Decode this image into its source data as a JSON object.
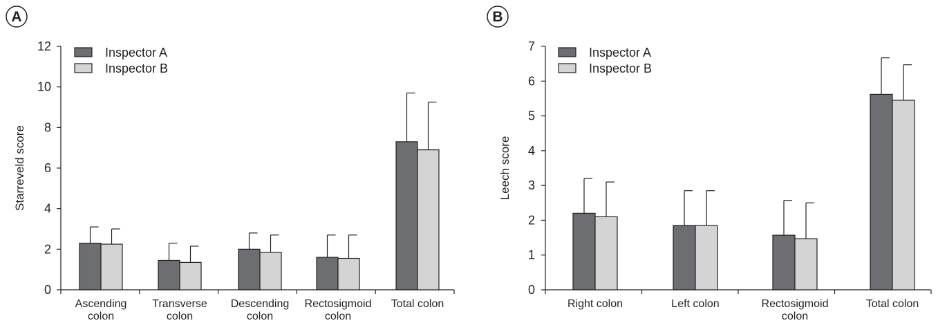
{
  "panels": [
    {
      "label": "A",
      "chart_data": {
        "type": "bar",
        "categories": [
          [
            "Ascending",
            "colon"
          ],
          [
            "Transverse",
            "colon"
          ],
          [
            "Descending",
            "colon"
          ],
          [
            "Rectosigmoid",
            "colon"
          ],
          [
            "Total colon"
          ]
        ],
        "series": [
          {
            "name": "Inspector A",
            "values": [
              2.3,
              1.45,
              2.0,
              1.6,
              7.3
            ],
            "errors": [
              0.8,
              0.85,
              0.8,
              1.1,
              2.4
            ]
          },
          {
            "name": "Inspector B",
            "values": [
              2.25,
              1.35,
              1.85,
              1.55,
              6.9
            ],
            "errors": [
              0.75,
              0.8,
              0.85,
              1.15,
              2.35
            ]
          }
        ],
        "ylabel": "Starreveld score",
        "xlabel": "",
        "ylim": [
          0,
          12
        ],
        "yticks": [
          0,
          2,
          4,
          6,
          8,
          10,
          12
        ],
        "legend": "top-left",
        "grid": false
      }
    },
    {
      "label": "B",
      "chart_data": {
        "type": "bar",
        "categories": [
          [
            "Right colon"
          ],
          [
            "Left colon"
          ],
          [
            "Rectosigmoid",
            "colon"
          ],
          [
            "Total colon"
          ]
        ],
        "series": [
          {
            "name": "Inspector A",
            "values": [
              2.2,
              1.85,
              1.57,
              5.62
            ],
            "errors": [
              1.0,
              1.0,
              1.0,
              1.05
            ]
          },
          {
            "name": "Inspector B",
            "values": [
              2.1,
              1.85,
              1.47,
              5.45
            ],
            "errors": [
              1.0,
              1.0,
              1.03,
              1.02
            ]
          }
        ],
        "ylabel": "Leech score",
        "xlabel": "",
        "ylim": [
          0,
          7
        ],
        "yticks": [
          0,
          1,
          2,
          3,
          4,
          5,
          6,
          7
        ],
        "legend": "top-left",
        "grid": false
      }
    }
  ],
  "colors": {
    "Inspector A": "#6d6e71",
    "Inspector B": "#d4d4d4",
    "axis": "#231f20"
  }
}
